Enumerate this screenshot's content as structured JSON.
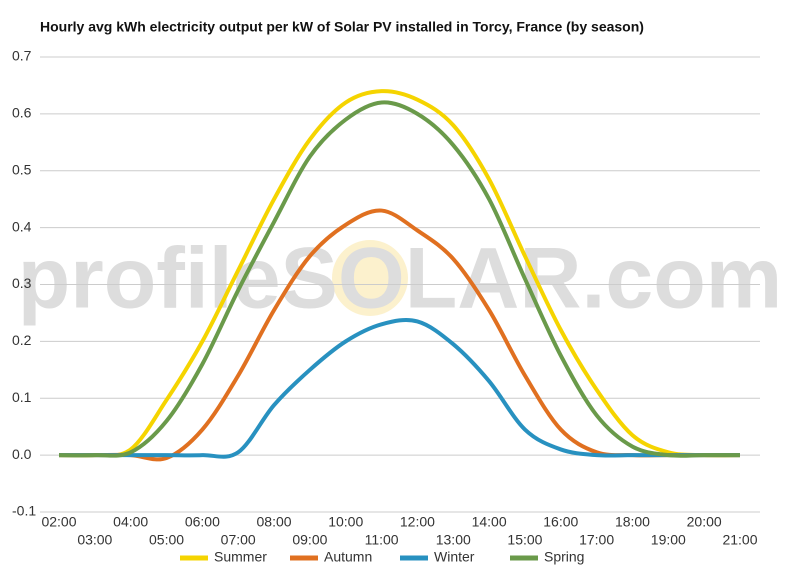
{
  "chart_data": {
    "type": "line",
    "title": "Hourly avg kWh electricity output per kW of Solar PV installed in Torcy, France (by season)",
    "watermark": "profileSOLAR.com",
    "categories": [
      "02:00",
      "03:00",
      "04:00",
      "05:00",
      "06:00",
      "07:00",
      "08:00",
      "09:00",
      "10:00",
      "11:00",
      "12:00",
      "13:00",
      "14:00",
      "15:00",
      "16:00",
      "17:00",
      "18:00",
      "19:00",
      "20:00",
      "21:00"
    ],
    "series": [
      {
        "name": "Summer",
        "color": "#f5d400",
        "values": [
          0,
          0,
          0.01,
          0.097,
          0.2,
          0.325,
          0.45,
          0.555,
          0.62,
          0.64,
          0.625,
          0.58,
          0.485,
          0.35,
          0.22,
          0.115,
          0.035,
          0.005,
          0,
          0
        ]
      },
      {
        "name": "Autumn",
        "color": "#e07020",
        "values": [
          0,
          0,
          0,
          -0.005,
          0.045,
          0.14,
          0.255,
          0.35,
          0.405,
          0.43,
          0.395,
          0.345,
          0.255,
          0.14,
          0.045,
          0.005,
          0,
          0,
          0,
          0
        ]
      },
      {
        "name": "Winter",
        "color": "#2891c0",
        "values": [
          0,
          0,
          0,
          0,
          0,
          0.005,
          0.088,
          0.15,
          0.2,
          0.23,
          0.235,
          0.195,
          0.13,
          0.045,
          0.01,
          0,
          0,
          0,
          0,
          0
        ]
      },
      {
        "name": "Spring",
        "color": "#6a9a4a",
        "values": [
          0,
          0,
          0.005,
          0.06,
          0.16,
          0.29,
          0.41,
          0.525,
          0.59,
          0.62,
          0.6,
          0.545,
          0.45,
          0.31,
          0.175,
          0.07,
          0.015,
          0,
          0,
          0
        ]
      }
    ],
    "ylim": [
      -0.1,
      0.7
    ],
    "yticks": [
      {
        "value": -0.1,
        "label": "-0.1"
      },
      {
        "value": 0,
        "label": "0.0"
      },
      0.1,
      0.2,
      0.3,
      0.4,
      0.5,
      0.6,
      0.7
    ],
    "grid": true,
    "legend": "bottom"
  }
}
